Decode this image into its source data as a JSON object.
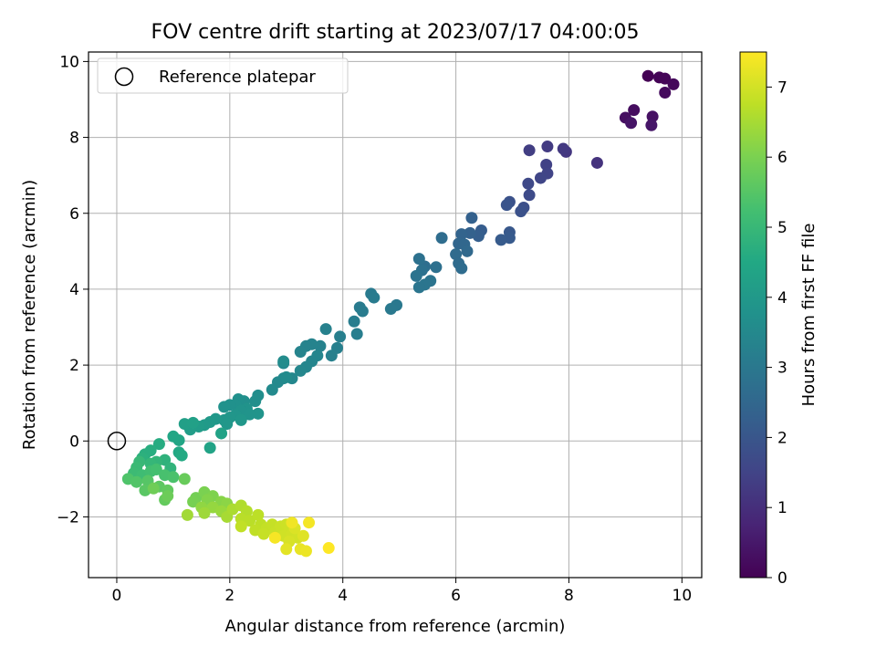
{
  "chart_data": {
    "type": "scatter",
    "title": "FOV centre drift starting at 2023/07/17 04:00:05",
    "xlabel": "Angular distance from reference (arcmin)",
    "ylabel": "Rotation from reference (arcmin)",
    "xlim": [
      -0.5,
      10.35
    ],
    "ylim": [
      -3.6,
      10.25
    ],
    "xticks": [
      0,
      2,
      4,
      6,
      8,
      10
    ],
    "yticks": [
      -2,
      0,
      2,
      4,
      6,
      8,
      10
    ],
    "grid": true,
    "legend": {
      "position": "top-left",
      "entries": [
        "Reference platepar"
      ]
    },
    "reference_point": {
      "x": 0,
      "y": 0,
      "marker": "hollow-circle"
    },
    "colorbar": {
      "label": "Hours from first FF file",
      "min": 0,
      "max": 7.5,
      "ticks": [
        0,
        1,
        2,
        3,
        4,
        5,
        6,
        7
      ],
      "colormap": "viridis"
    },
    "series": [
      {
        "color_by": "hours",
        "points": [
          {
            "x": 9.4,
            "y": 9.62,
            "c": 0.0
          },
          {
            "x": 9.6,
            "y": 9.58,
            "c": 0.05
          },
          {
            "x": 9.7,
            "y": 9.55,
            "c": 0.1
          },
          {
            "x": 9.85,
            "y": 9.4,
            "c": 0.15
          },
          {
            "x": 9.7,
            "y": 9.18,
            "c": 0.2
          },
          {
            "x": 9.15,
            "y": 8.72,
            "c": 0.25
          },
          {
            "x": 9.0,
            "y": 8.52,
            "c": 0.3
          },
          {
            "x": 9.48,
            "y": 8.55,
            "c": 0.35
          },
          {
            "x": 9.1,
            "y": 8.38,
            "c": 0.4
          },
          {
            "x": 9.46,
            "y": 8.32,
            "c": 0.45
          },
          {
            "x": 8.5,
            "y": 7.33,
            "c": 1.1
          },
          {
            "x": 7.95,
            "y": 7.62,
            "c": 1.2
          },
          {
            "x": 7.9,
            "y": 7.7,
            "c": 1.25
          },
          {
            "x": 7.62,
            "y": 7.76,
            "c": 1.3
          },
          {
            "x": 7.3,
            "y": 7.66,
            "c": 1.35
          },
          {
            "x": 7.6,
            "y": 7.28,
            "c": 1.45
          },
          {
            "x": 7.62,
            "y": 7.05,
            "c": 1.5
          },
          {
            "x": 7.5,
            "y": 6.93,
            "c": 1.55
          },
          {
            "x": 7.28,
            "y": 6.78,
            "c": 1.65
          },
          {
            "x": 7.3,
            "y": 6.48,
            "c": 1.7
          },
          {
            "x": 7.2,
            "y": 6.15,
            "c": 1.8
          },
          {
            "x": 7.15,
            "y": 6.05,
            "c": 1.85
          },
          {
            "x": 6.95,
            "y": 6.3,
            "c": 1.9
          },
          {
            "x": 6.9,
            "y": 6.22,
            "c": 1.95
          },
          {
            "x": 6.95,
            "y": 5.5,
            "c": 2.05
          },
          {
            "x": 6.95,
            "y": 5.35,
            "c": 2.1
          },
          {
            "x": 6.8,
            "y": 5.3,
            "c": 2.15
          },
          {
            "x": 6.45,
            "y": 5.55,
            "c": 2.2
          },
          {
            "x": 6.4,
            "y": 5.4,
            "c": 2.25
          },
          {
            "x": 6.28,
            "y": 5.88,
            "c": 2.3
          },
          {
            "x": 6.25,
            "y": 5.48,
            "c": 2.35
          },
          {
            "x": 6.1,
            "y": 5.45,
            "c": 2.4
          },
          {
            "x": 6.05,
            "y": 5.2,
            "c": 2.45
          },
          {
            "x": 6.15,
            "y": 5.18,
            "c": 2.5
          },
          {
            "x": 6.2,
            "y": 5.0,
            "c": 2.55
          },
          {
            "x": 6.0,
            "y": 4.92,
            "c": 2.6
          },
          {
            "x": 6.05,
            "y": 4.68,
            "c": 2.62
          },
          {
            "x": 6.1,
            "y": 4.55,
            "c": 2.65
          },
          {
            "x": 5.75,
            "y": 5.35,
            "c": 2.68
          },
          {
            "x": 5.45,
            "y": 4.6,
            "c": 2.7
          },
          {
            "x": 5.65,
            "y": 4.58,
            "c": 2.75
          },
          {
            "x": 5.35,
            "y": 4.8,
            "c": 2.78
          },
          {
            "x": 5.4,
            "y": 4.5,
            "c": 2.8
          },
          {
            "x": 5.3,
            "y": 4.35,
            "c": 2.85
          },
          {
            "x": 5.55,
            "y": 4.22,
            "c": 2.88
          },
          {
            "x": 5.45,
            "y": 4.12,
            "c": 2.9
          },
          {
            "x": 5.35,
            "y": 4.05,
            "c": 2.92
          },
          {
            "x": 4.95,
            "y": 3.58,
            "c": 3.0
          },
          {
            "x": 4.85,
            "y": 3.48,
            "c": 3.02
          },
          {
            "x": 4.5,
            "y": 3.88,
            "c": 3.05
          },
          {
            "x": 4.55,
            "y": 3.78,
            "c": 3.08
          },
          {
            "x": 4.3,
            "y": 3.52,
            "c": 3.1
          },
          {
            "x": 4.35,
            "y": 3.42,
            "c": 3.12
          },
          {
            "x": 4.2,
            "y": 3.15,
            "c": 3.15
          },
          {
            "x": 4.25,
            "y": 2.82,
            "c": 3.18
          },
          {
            "x": 3.95,
            "y": 2.75,
            "c": 3.2
          },
          {
            "x": 3.9,
            "y": 2.45,
            "c": 3.22
          },
          {
            "x": 3.8,
            "y": 2.25,
            "c": 3.25
          },
          {
            "x": 3.7,
            "y": 2.95,
            "c": 3.28
          },
          {
            "x": 3.6,
            "y": 2.5,
            "c": 3.3
          },
          {
            "x": 3.45,
            "y": 2.55,
            "c": 3.32
          },
          {
            "x": 3.35,
            "y": 2.5,
            "c": 3.34
          },
          {
            "x": 3.25,
            "y": 2.35,
            "c": 3.36
          },
          {
            "x": 3.55,
            "y": 2.25,
            "c": 3.38
          },
          {
            "x": 3.45,
            "y": 2.1,
            "c": 3.4
          },
          {
            "x": 3.35,
            "y": 1.95,
            "c": 3.42
          },
          {
            "x": 3.25,
            "y": 1.85,
            "c": 3.44
          },
          {
            "x": 3.1,
            "y": 1.65,
            "c": 3.46
          },
          {
            "x": 2.95,
            "y": 2.05,
            "c": 3.48
          },
          {
            "x": 2.95,
            "y": 1.65,
            "c": 3.5
          },
          {
            "x": 2.85,
            "y": 1.55,
            "c": 3.52
          },
          {
            "x": 2.75,
            "y": 1.35,
            "c": 3.55
          },
          {
            "x": 3.0,
            "y": 1.68,
            "c": 3.58
          },
          {
            "x": 2.95,
            "y": 2.1,
            "c": 3.6
          },
          {
            "x": 2.5,
            "y": 1.2,
            "c": 3.65
          },
          {
            "x": 2.45,
            "y": 1.05,
            "c": 3.68
          },
          {
            "x": 2.25,
            "y": 1.05,
            "c": 3.7
          },
          {
            "x": 2.15,
            "y": 1.1,
            "c": 3.72
          },
          {
            "x": 2.1,
            "y": 0.95,
            "c": 3.74
          },
          {
            "x": 2.0,
            "y": 0.95,
            "c": 3.76
          },
          {
            "x": 1.9,
            "y": 0.9,
            "c": 3.78
          },
          {
            "x": 2.3,
            "y": 0.85,
            "c": 3.8
          },
          {
            "x": 2.2,
            "y": 0.8,
            "c": 3.82
          },
          {
            "x": 2.5,
            "y": 0.72,
            "c": 3.84
          },
          {
            "x": 2.35,
            "y": 0.7,
            "c": 3.86
          },
          {
            "x": 2.1,
            "y": 0.68,
            "c": 3.88
          },
          {
            "x": 2.0,
            "y": 0.62,
            "c": 3.9
          },
          {
            "x": 1.9,
            "y": 0.55,
            "c": 3.92
          },
          {
            "x": 2.2,
            "y": 0.55,
            "c": 3.94
          },
          {
            "x": 1.95,
            "y": 0.45,
            "c": 3.96
          },
          {
            "x": 1.75,
            "y": 0.58,
            "c": 3.98
          },
          {
            "x": 1.65,
            "y": 0.5,
            "c": 4.0
          },
          {
            "x": 1.55,
            "y": 0.42,
            "c": 4.05
          },
          {
            "x": 1.45,
            "y": 0.38,
            "c": 4.1
          },
          {
            "x": 1.3,
            "y": 0.3,
            "c": 4.15
          },
          {
            "x": 1.2,
            "y": 0.45,
            "c": 4.2
          },
          {
            "x": 1.35,
            "y": 0.48,
            "c": 4.25
          },
          {
            "x": 1.85,
            "y": 0.2,
            "c": 4.3
          },
          {
            "x": 1.65,
            "y": -0.18,
            "c": 4.35
          },
          {
            "x": 1.1,
            "y": 0.02,
            "c": 4.4
          },
          {
            "x": 1.0,
            "y": 0.12,
            "c": 4.45
          },
          {
            "x": 1.1,
            "y": -0.3,
            "c": 4.5
          },
          {
            "x": 1.15,
            "y": -0.38,
            "c": 4.55
          },
          {
            "x": 0.75,
            "y": -0.08,
            "c": 4.6
          },
          {
            "x": 0.6,
            "y": -0.25,
            "c": 4.65
          },
          {
            "x": 0.5,
            "y": -0.35,
            "c": 4.7
          },
          {
            "x": 0.45,
            "y": -0.45,
            "c": 4.75
          },
          {
            "x": 0.85,
            "y": -0.5,
            "c": 4.8
          },
          {
            "x": 0.95,
            "y": -0.72,
            "c": 4.85
          },
          {
            "x": 0.7,
            "y": -0.55,
            "c": 4.9
          },
          {
            "x": 0.6,
            "y": -0.6,
            "c": 4.95
          },
          {
            "x": 0.4,
            "y": -0.55,
            "c": 5.0
          },
          {
            "x": 0.35,
            "y": -0.7,
            "c": 5.05
          },
          {
            "x": 0.3,
            "y": -0.85,
            "c": 5.1
          },
          {
            "x": 0.45,
            "y": -0.9,
            "c": 5.15
          },
          {
            "x": 0.6,
            "y": -0.8,
            "c": 5.2
          },
          {
            "x": 0.7,
            "y": -0.75,
            "c": 5.25
          },
          {
            "x": 0.85,
            "y": -0.9,
            "c": 5.3
          },
          {
            "x": 1.0,
            "y": -0.95,
            "c": 5.35
          },
          {
            "x": 0.2,
            "y": -1.0,
            "c": 5.4
          },
          {
            "x": 0.35,
            "y": -1.08,
            "c": 5.45
          },
          {
            "x": 0.55,
            "y": -1.05,
            "c": 5.5
          },
          {
            "x": 0.5,
            "y": -1.3,
            "c": 5.55
          },
          {
            "x": 0.75,
            "y": -1.2,
            "c": 5.6
          },
          {
            "x": 0.9,
            "y": -1.3,
            "c": 5.65
          },
          {
            "x": 0.85,
            "y": -1.55,
            "c": 5.7
          },
          {
            "x": 1.2,
            "y": -1.0,
            "c": 5.75
          },
          {
            "x": 0.9,
            "y": -1.45,
            "c": 5.8
          },
          {
            "x": 0.65,
            "y": -1.25,
            "c": 5.85
          },
          {
            "x": 1.4,
            "y": -1.5,
            "c": 5.9
          },
          {
            "x": 1.35,
            "y": -1.6,
            "c": 5.95
          },
          {
            "x": 1.55,
            "y": -1.35,
            "c": 6.0
          },
          {
            "x": 1.7,
            "y": -1.45,
            "c": 6.05
          },
          {
            "x": 1.6,
            "y": -1.55,
            "c": 6.1
          },
          {
            "x": 1.85,
            "y": -1.6,
            "c": 6.15
          },
          {
            "x": 1.95,
            "y": -1.65,
            "c": 6.2
          },
          {
            "x": 1.5,
            "y": -1.75,
            "c": 6.25
          },
          {
            "x": 1.7,
            "y": -1.75,
            "c": 6.3
          },
          {
            "x": 1.85,
            "y": -1.85,
            "c": 6.35
          },
          {
            "x": 1.55,
            "y": -1.9,
            "c": 6.4
          },
          {
            "x": 1.25,
            "y": -1.95,
            "c": 6.45
          },
          {
            "x": 1.95,
            "y": -2.0,
            "c": 6.5
          },
          {
            "x": 2.05,
            "y": -1.8,
            "c": 6.55
          },
          {
            "x": 2.2,
            "y": -1.7,
            "c": 6.6
          },
          {
            "x": 2.3,
            "y": -1.85,
            "c": 6.65
          },
          {
            "x": 2.2,
            "y": -2.05,
            "c": 6.7
          },
          {
            "x": 2.35,
            "y": -2.1,
            "c": 6.72
          },
          {
            "x": 2.5,
            "y": -1.95,
            "c": 6.74
          },
          {
            "x": 2.55,
            "y": -2.2,
            "c": 6.76
          },
          {
            "x": 2.45,
            "y": -2.35,
            "c": 6.78
          },
          {
            "x": 2.2,
            "y": -2.25,
            "c": 6.8
          },
          {
            "x": 2.65,
            "y": -2.3,
            "c": 6.82
          },
          {
            "x": 2.75,
            "y": -2.2,
            "c": 6.84
          },
          {
            "x": 2.6,
            "y": -2.45,
            "c": 6.86
          },
          {
            "x": 2.8,
            "y": -2.4,
            "c": 6.88
          },
          {
            "x": 2.9,
            "y": -2.25,
            "c": 6.9
          },
          {
            "x": 3.0,
            "y": -2.2,
            "c": 6.92
          },
          {
            "x": 3.05,
            "y": -2.35,
            "c": 6.94
          },
          {
            "x": 2.95,
            "y": -2.5,
            "c": 6.96
          },
          {
            "x": 3.1,
            "y": -2.45,
            "c": 6.98
          },
          {
            "x": 3.2,
            "y": -2.55,
            "c": 7.0
          },
          {
            "x": 3.05,
            "y": -2.65,
            "c": 7.05
          },
          {
            "x": 3.15,
            "y": -2.3,
            "c": 7.1
          },
          {
            "x": 3.3,
            "y": -2.5,
            "c": 7.15
          },
          {
            "x": 3.0,
            "y": -2.85,
            "c": 7.2
          },
          {
            "x": 3.25,
            "y": -2.85,
            "c": 7.25
          },
          {
            "x": 3.35,
            "y": -2.9,
            "c": 7.3
          },
          {
            "x": 3.1,
            "y": -2.15,
            "c": 7.35
          },
          {
            "x": 3.4,
            "y": -2.15,
            "c": 7.4
          },
          {
            "x": 2.8,
            "y": -2.55,
            "c": 7.42
          },
          {
            "x": 3.75,
            "y": -2.82,
            "c": 7.5
          }
        ]
      }
    ]
  }
}
